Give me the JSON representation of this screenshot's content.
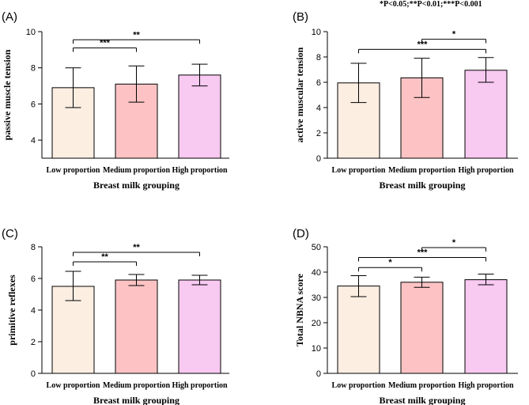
{
  "significance_note": "*P<0.05;**P<0.01;***P<0.001",
  "colors": {
    "low": "#fdeee2",
    "medium": "#fdc3c4",
    "high": "#f8c9f1",
    "stroke": "#000000"
  },
  "chart_data": [
    {
      "type": "bar",
      "panel_label": "(A)",
      "categories": [
        "Low proportion",
        "Medium proportion",
        "High proportion"
      ],
      "values": [
        6.9,
        7.1,
        7.6
      ],
      "error": [
        [
          5.8,
          8.0
        ],
        [
          6.1,
          8.1
        ],
        [
          7.0,
          8.2
        ]
      ],
      "ylabel": "passive muscle tension",
      "xlabel": "Breast milk grouping",
      "ylim": [
        3,
        10
      ],
      "yticks": [
        "4",
        "6",
        "8",
        "10"
      ],
      "comparisons": [
        {
          "from": 0,
          "to": 1,
          "level": 9.1,
          "label": "***"
        },
        {
          "from": 0,
          "to": 2,
          "level": 9.55,
          "label": "**"
        }
      ]
    },
    {
      "type": "bar",
      "panel_label": "(B)",
      "categories": [
        "Low proportion",
        "Medium proportion",
        "High proportion"
      ],
      "values": [
        5.95,
        6.35,
        6.95
      ],
      "error": [
        [
          4.4,
          7.5
        ],
        [
          4.8,
          7.9
        ],
        [
          6.0,
          7.95
        ]
      ],
      "ylabel": "active muscular tension",
      "xlabel": "Breast milk grouping",
      "ylim": [
        0,
        10
      ],
      "yticks": [
        "0",
        "2",
        "4",
        "6",
        "8",
        "10"
      ],
      "comparisons": [
        {
          "from": 1,
          "to": 2,
          "level": 9.4,
          "label": "*"
        },
        {
          "from": 0,
          "to": 2,
          "level": 8.6,
          "label": "***"
        }
      ]
    },
    {
      "type": "bar",
      "panel_label": "(C)",
      "categories": [
        "Low proportion",
        "Medium proportion",
        "High proportion"
      ],
      "values": [
        5.5,
        5.9,
        5.9
      ],
      "error": [
        [
          4.6,
          6.45
        ],
        [
          5.55,
          6.25
        ],
        [
          5.6,
          6.2
        ]
      ],
      "ylabel": "primitive reflexes",
      "xlabel": "Breast milk grouping",
      "ylim": [
        0,
        8
      ],
      "yticks": [
        "0",
        "2",
        "4",
        "6",
        "8"
      ],
      "comparisons": [
        {
          "from": 0,
          "to": 1,
          "level": 7.05,
          "label": "**"
        },
        {
          "from": 0,
          "to": 2,
          "level": 7.65,
          "label": "**"
        }
      ]
    },
    {
      "type": "bar",
      "panel_label": "(D)",
      "categories": [
        "Low proportion",
        "Medium proportion",
        "High proportion"
      ],
      "values": [
        34.5,
        36.0,
        37.0
      ],
      "error": [
        [
          30.3,
          38.6
        ],
        [
          34.0,
          38.0
        ],
        [
          35.0,
          39.2
        ]
      ],
      "ylabel": "Total NBNA score",
      "xlabel": "Breast milk grouping",
      "ylim": [
        0,
        50
      ],
      "yticks": [
        "0",
        "10",
        "20",
        "30",
        "40",
        "50"
      ],
      "comparisons": [
        {
          "from": 0,
          "to": 1,
          "level": 41.8,
          "label": "*"
        },
        {
          "from": 0,
          "to": 2,
          "level": 45.8,
          "label": "***"
        },
        {
          "from": 1,
          "to": 2,
          "level": 49.7,
          "label": "*"
        }
      ]
    }
  ]
}
